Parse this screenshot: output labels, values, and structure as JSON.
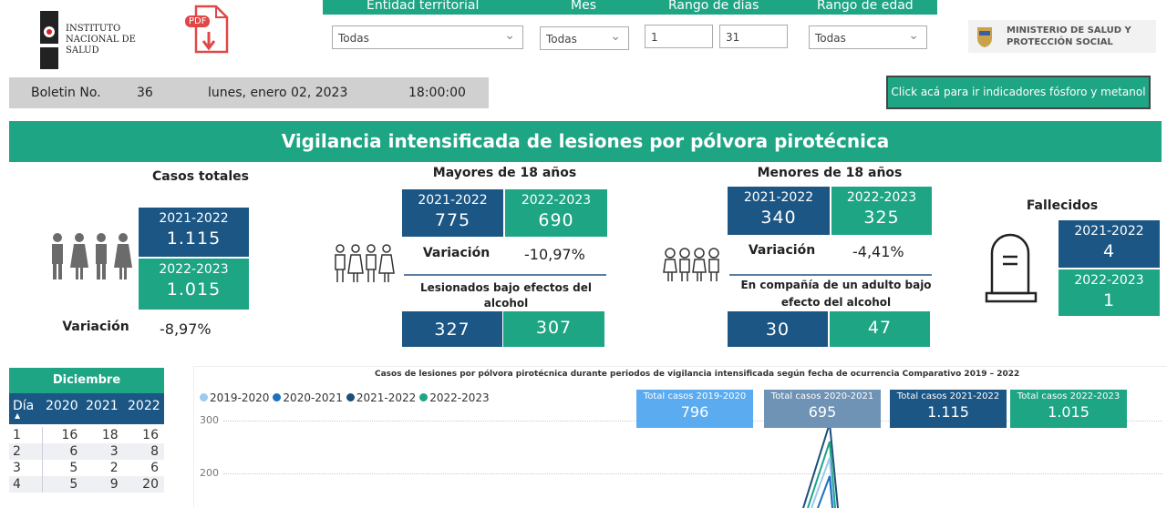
{
  "header": {
    "ins_logo": "Instituto Nacional de Salud",
    "ins_lines": [
      "INSTITUTO",
      "NACIONAL DE",
      "SALUD"
    ],
    "pdf_label": "PDF",
    "ministry_lines": [
      "MINISTERIO DE SALUD Y",
      "PROTECCIÓN SOCIAL"
    ]
  },
  "filters": {
    "entidad_label": "Entidad territorial",
    "entidad_value": "Todas",
    "mes_label": "Mes",
    "mes_value": "Todas",
    "dias_label": "Rango de días",
    "dia_from": "1",
    "dia_to": "31",
    "edad_label": "Rango de edad",
    "edad_value": "Todas"
  },
  "bulletin": {
    "label": "Boletin No.",
    "number": "36",
    "date": "lunes, enero 02, 2023",
    "time": "18:00:00"
  },
  "link_button": "Click acá para ir indicadores fósforo y metanol",
  "title": "Vigilancia intensificada de lesiones por pólvora pirotécnica",
  "totales": {
    "title": "Casos totales",
    "p1": "2021-2022",
    "v1": "1.115",
    "p2": "2022-2023",
    "v2": "1.015",
    "var_label": "Variación",
    "var": "-8,97%"
  },
  "mayores": {
    "title": "Mayores de 18 años",
    "p1": "2021-2022",
    "v1": "775",
    "p2": "2022-2023",
    "v2": "690",
    "var_label": "Variación",
    "var": "-10,97%",
    "sub": "Lesionados bajo efectos del alcohol",
    "s1": "327",
    "s2": "307"
  },
  "menores": {
    "title": "Menores de 18 años",
    "p1": "2021-2022",
    "v1": "340",
    "p2": "2022-2023",
    "v2": "325",
    "var_label": "Variación",
    "var": "-4,41%",
    "sub": "En compañía de un adulto bajo efecto del alcohol",
    "s1": "30",
    "s2": "47"
  },
  "fallecidos": {
    "title": "Fallecidos",
    "p1": "2021-2022",
    "v1": "4",
    "p2": "2022-2023",
    "v2": "1"
  },
  "table": {
    "title": "Diciembre",
    "headers": [
      "Día",
      "2020",
      "2021",
      "2022"
    ],
    "rows": [
      [
        "1",
        "16",
        "18",
        "16"
      ],
      [
        "2",
        "6",
        "3",
        "8"
      ],
      [
        "3",
        "5",
        "2",
        "6"
      ],
      [
        "4",
        "5",
        "9",
        "20"
      ]
    ]
  },
  "chart": {
    "title": "Casos de lesiones por pólvora pirotécnica durante periodos de vigilancia intensificada según fecha de ocurrencia Comparativo 2019 – 2022",
    "legend": [
      {
        "name": "2019-2020",
        "color": "#9ccaf0"
      },
      {
        "name": "2020-2021",
        "color": "#1f6fc0"
      },
      {
        "name": "2021-2022",
        "color": "#1b4f7a"
      },
      {
        "name": "2022-2023",
        "color": "#1ea584"
      }
    ],
    "y_ticks": [
      "300",
      "200"
    ],
    "kpis": [
      {
        "label": "Total casos 2019-2020",
        "value": "796",
        "color": "#5aabf0"
      },
      {
        "label": "Total casos 2020-2021",
        "value": "695",
        "color": "#6f93b4"
      },
      {
        "label": "Total casos 2021-2022",
        "value": "1.115",
        "color": "#1b5685"
      },
      {
        "label": "Total casos 2022-2023",
        "value": "1.015",
        "color": "#1ea584"
      }
    ]
  },
  "colors": {
    "green": "#1ea584",
    "blue": "#1b5685",
    "gray": "#d0d0d0"
  }
}
